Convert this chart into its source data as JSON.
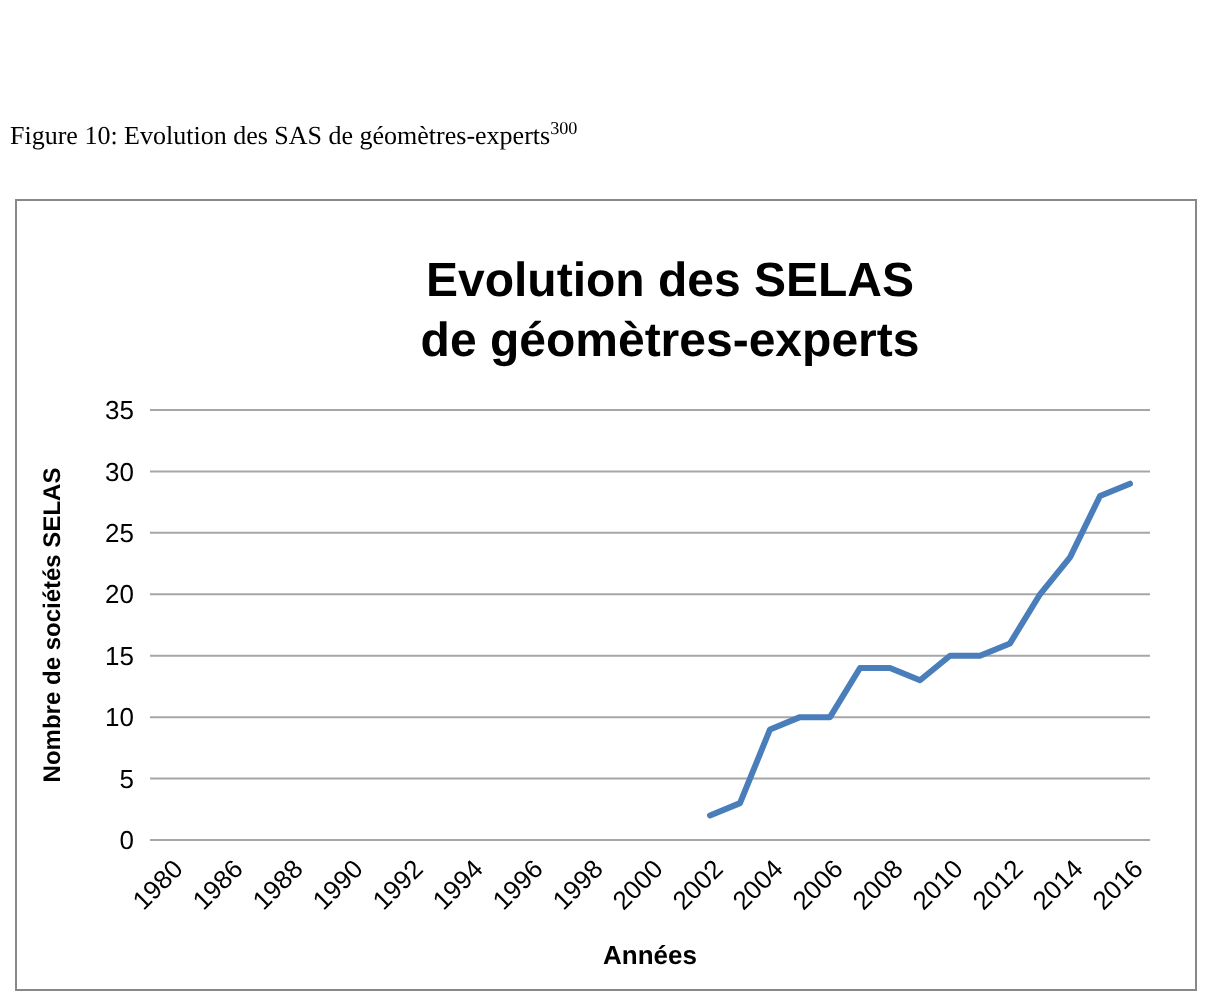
{
  "chart_data": {
    "type": "line",
    "title": "Evolution des SELAS\nde géomètres-experts",
    "xlabel": "Années",
    "ylabel": "Nombre de sociétés SELAS",
    "annotations": [
      "Figure 10: Evolution des SAS de géomètres-experts$^{300}$"
    ],
    "categories": [
      "1980",
      null,
      "1986",
      null,
      "1988",
      null,
      "1990",
      null,
      "1992",
      null,
      "1994",
      null,
      "1996",
      null,
      "1998",
      null,
      "2000",
      null,
      "2002",
      null,
      "2004",
      null,
      "2006",
      null,
      "2008",
      null,
      "2010",
      null,
      "2012",
      null,
      "2014",
      null,
      "2016"
    ],
    "series": [
      {
        "color": "#4a7ebb",
        "values": [
          null,
          null,
          null,
          null,
          null,
          null,
          null,
          null,
          null,
          null,
          null,
          null,
          null,
          null,
          null,
          null,
          null,
          null,
          2,
          3,
          9,
          10,
          10,
          14,
          14,
          13,
          15,
          15,
          16,
          20,
          23,
          28,
          29
        ]
      }
    ],
    "ylim": [
      0,
      35
    ],
    "yticks": [
      0,
      5,
      10,
      15,
      20,
      25,
      30,
      35
    ],
    "grid": "y",
    "marker": "none",
    "line_style": "solid"
  }
}
